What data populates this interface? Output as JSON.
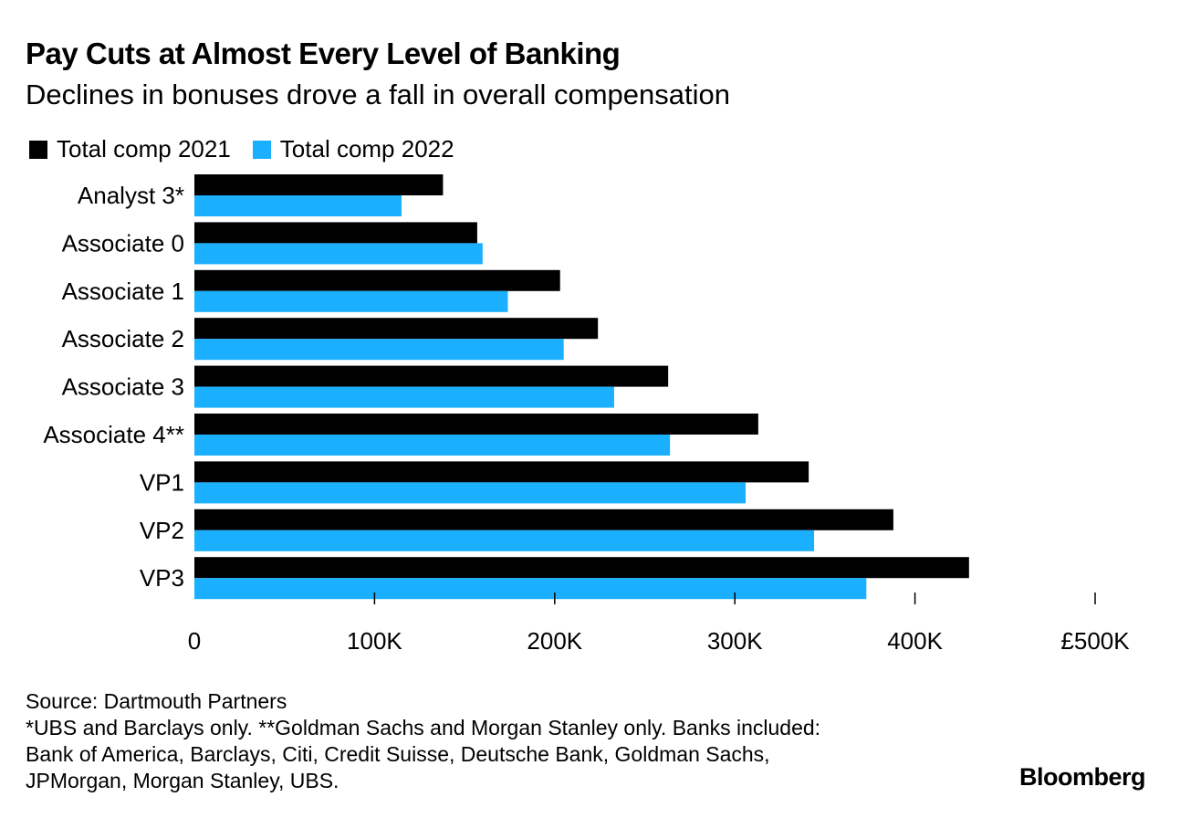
{
  "title": "Pay Cuts at Almost Every Level of Banking",
  "subtitle": "Declines in bonuses drove a fall in overall compensation",
  "legend": [
    {
      "label": "Total comp 2021",
      "color": "#000000"
    },
    {
      "label": "Total comp 2022",
      "color": "#1ab0ff"
    }
  ],
  "chart_data": {
    "type": "bar",
    "orientation": "horizontal",
    "title": "Pay Cuts at Almost Every Level of Banking",
    "subtitle": "Declines in bonuses drove a fall in overall compensation",
    "categories": [
      "Analyst 3*",
      "Associate 0",
      "Associate 1",
      "Associate 2",
      "Associate 3",
      "Associate 4**",
      "VP1",
      "VP2",
      "VP3"
    ],
    "series": [
      {
        "name": "Total comp 2021",
        "color": "#000000",
        "values": [
          138000,
          157000,
          203000,
          224000,
          263000,
          313000,
          341000,
          388000,
          430000
        ]
      },
      {
        "name": "Total comp 2022",
        "color": "#1ab0ff",
        "values": [
          115000,
          160000,
          174000,
          205000,
          233000,
          264000,
          306000,
          344000,
          373000
        ]
      }
    ],
    "xlim": [
      0,
      500000
    ],
    "xticks": [
      0,
      100000,
      200000,
      300000,
      400000,
      500000
    ],
    "xtick_labels": [
      "0",
      "100K",
      "200K",
      "300K",
      "400K",
      "£500K"
    ],
    "xlabel": "",
    "ylabel": "",
    "grid": false,
    "legend_position": "top-left"
  },
  "footnotes": {
    "source": "Source: Dartmouth Partners",
    "line1": "*UBS and Barclays only. **Goldman Sachs and Morgan Stanley only. Banks included:",
    "line2": "Bank of America, Barclays, Citi, Credit Suisse, Deutsche Bank, Goldman Sachs,",
    "line3": "JPMorgan, Morgan Stanley, UBS."
  },
  "brand": "Bloomberg"
}
